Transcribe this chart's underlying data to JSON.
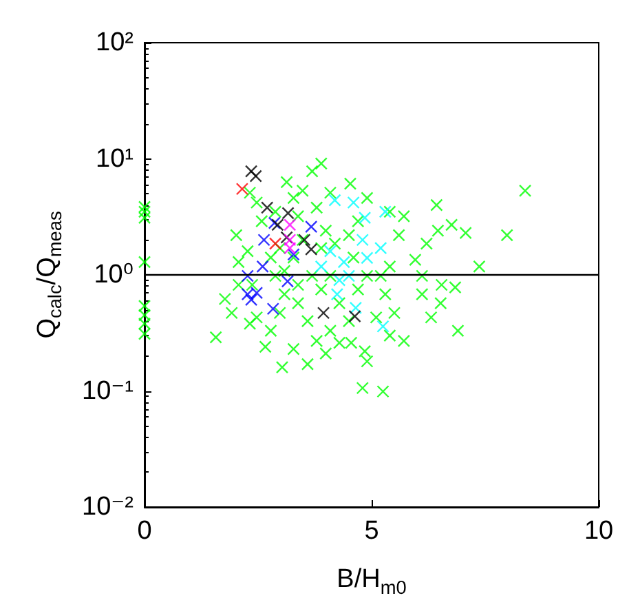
{
  "chart_data": {
    "type": "scatter",
    "xlabel": "B/H$_{m0}$",
    "ylabel": "Q$_{calc}$/Q$_{meas}$",
    "xlim": [
      0,
      10
    ],
    "xticks": [
      0,
      5,
      10
    ],
    "ylim": [
      0.01,
      100
    ],
    "yticks": [
      {
        "value": 0.01,
        "label": "10⁻²"
      },
      {
        "value": 0.1,
        "label": "10⁻¹"
      },
      {
        "value": 1,
        "label": "10⁰"
      },
      {
        "value": 10,
        "label": "10¹"
      },
      {
        "value": 100,
        "label": "10²"
      }
    ],
    "log": "y",
    "grid": false,
    "marker": "cross",
    "ref_lines": [
      {
        "axis": "y",
        "value": 1,
        "color": "#000000"
      }
    ],
    "series": [
      {
        "color": "#00ff00",
        "x": [
          0,
          0,
          0,
          0,
          0,
          0,
          0,
          0,
          8.38,
          7.98,
          6.43,
          7.07,
          7.37,
          6.9,
          6.84,
          6.54,
          6.31,
          5.96,
          6.11,
          5.71,
          5.4,
          4.8,
          5.25,
          4.9,
          4.85,
          4.55,
          3.03,
          1.57,
          2.66,
          3.89,
          3.69,
          4.53,
          3.13,
          2.32,
          2.02,
          2.07,
          1.77,
          1.92,
          2.32,
          2.27,
          5.2,
          5.5,
          5.6,
          5.71,
          5.4,
          6.21,
          6.46,
          6.76,
          6.52,
          6.11,
          2.88,
          3.08,
          3.38,
          3.59,
          3.79,
          3.28,
          3.59,
          3.99,
          4.29,
          4.09,
          4.5,
          2.78,
          2.47,
          2.98,
          3.38,
          3.69,
          3.89,
          4.29,
          4.7,
          4.9,
          4.09,
          3.28,
          3.48,
          3.38,
          3.28,
          3.48,
          3.79,
          3.99,
          4.19,
          4.5,
          4.7,
          4.9,
          4.6,
          3.89,
          2.98,
          2.78,
          2.88,
          2.58,
          2.47,
          3.08,
          2.37,
          2.07,
          5.3,
          5.1,
          5.4,
          4.09
        ],
        "values": [
          3.85,
          3.5,
          3.1,
          1.29,
          0.54,
          0.45,
          0.38,
          0.31,
          5.3,
          2.2,
          4.0,
          2.3,
          1.18,
          0.33,
          0.78,
          0.82,
          0.43,
          1.35,
          0.68,
          0.27,
          0.3,
          0.106,
          0.099,
          0.18,
          0.22,
          0.26,
          0.16,
          0.29,
          0.24,
          9.1,
          7.8,
          6.1,
          6.3,
          5.1,
          2.2,
          1.29,
          0.62,
          0.47,
          0.38,
          1.6,
          0.98,
          0.47,
          2.2,
          3.2,
          3.5,
          1.86,
          2.4,
          2.7,
          0.57,
          0.98,
          0.98,
          0.68,
          0.57,
          0.4,
          0.27,
          0.23,
          0.17,
          0.21,
          0.26,
          0.33,
          0.4,
          0.33,
          0.43,
          0.47,
          0.82,
          0.98,
          0.75,
          0.57,
          0.75,
          0.98,
          0.98,
          1.41,
          2.0,
          3.2,
          4.6,
          5.3,
          3.8,
          2.4,
          1.86,
          2.2,
          2.9,
          4.6,
          1.41,
          1.7,
          1.7,
          1.41,
          3.5,
          2.9,
          4.2,
          1.08,
          0.82,
          0.82,
          0.68,
          0.43,
          1.18,
          5.1
        ]
      },
      {
        "color": "#00ffff",
        "x": [
          4.19,
          4.6,
          5.3,
          4.85,
          4.09,
          4.39,
          4.9,
          5.2,
          4.29,
          4.24,
          4.65,
          5.25,
          3.89,
          4.5,
          4.8
        ],
        "values": [
          4.4,
          4.2,
          3.5,
          3.1,
          1.6,
          1.29,
          1.4,
          1.7,
          0.9,
          0.68,
          0.52,
          0.36,
          1.18,
          0.98,
          2.0
        ]
      },
      {
        "color": "#0000ff",
        "x": [
          2.86,
          2.63,
          3.67,
          3.28,
          2.6,
          2.27,
          2.27,
          2.47,
          2.35,
          2.83,
          3.15
        ],
        "values": [
          2.8,
          2.0,
          2.6,
          1.5,
          1.18,
          0.98,
          0.68,
          0.7,
          0.61,
          0.51,
          0.88
        ]
      },
      {
        "color": "#000000",
        "x": [
          2.35,
          2.45,
          2.7,
          2.93,
          3.16,
          3.52,
          3.67,
          3.94,
          4.63,
          3.13
        ],
        "values": [
          7.8,
          7.1,
          3.8,
          2.7,
          3.4,
          2.0,
          1.66,
          0.47,
          0.44,
          2.1
        ]
      },
      {
        "color": "#ff00ff",
        "x": [
          3.2,
          3.2,
          3.2
        ],
        "values": [
          2.7,
          2.0,
          1.7
        ]
      },
      {
        "color": "#ff0000",
        "x": [
          2.15,
          2.88
        ],
        "values": [
          5.5,
          1.86
        ]
      }
    ]
  }
}
